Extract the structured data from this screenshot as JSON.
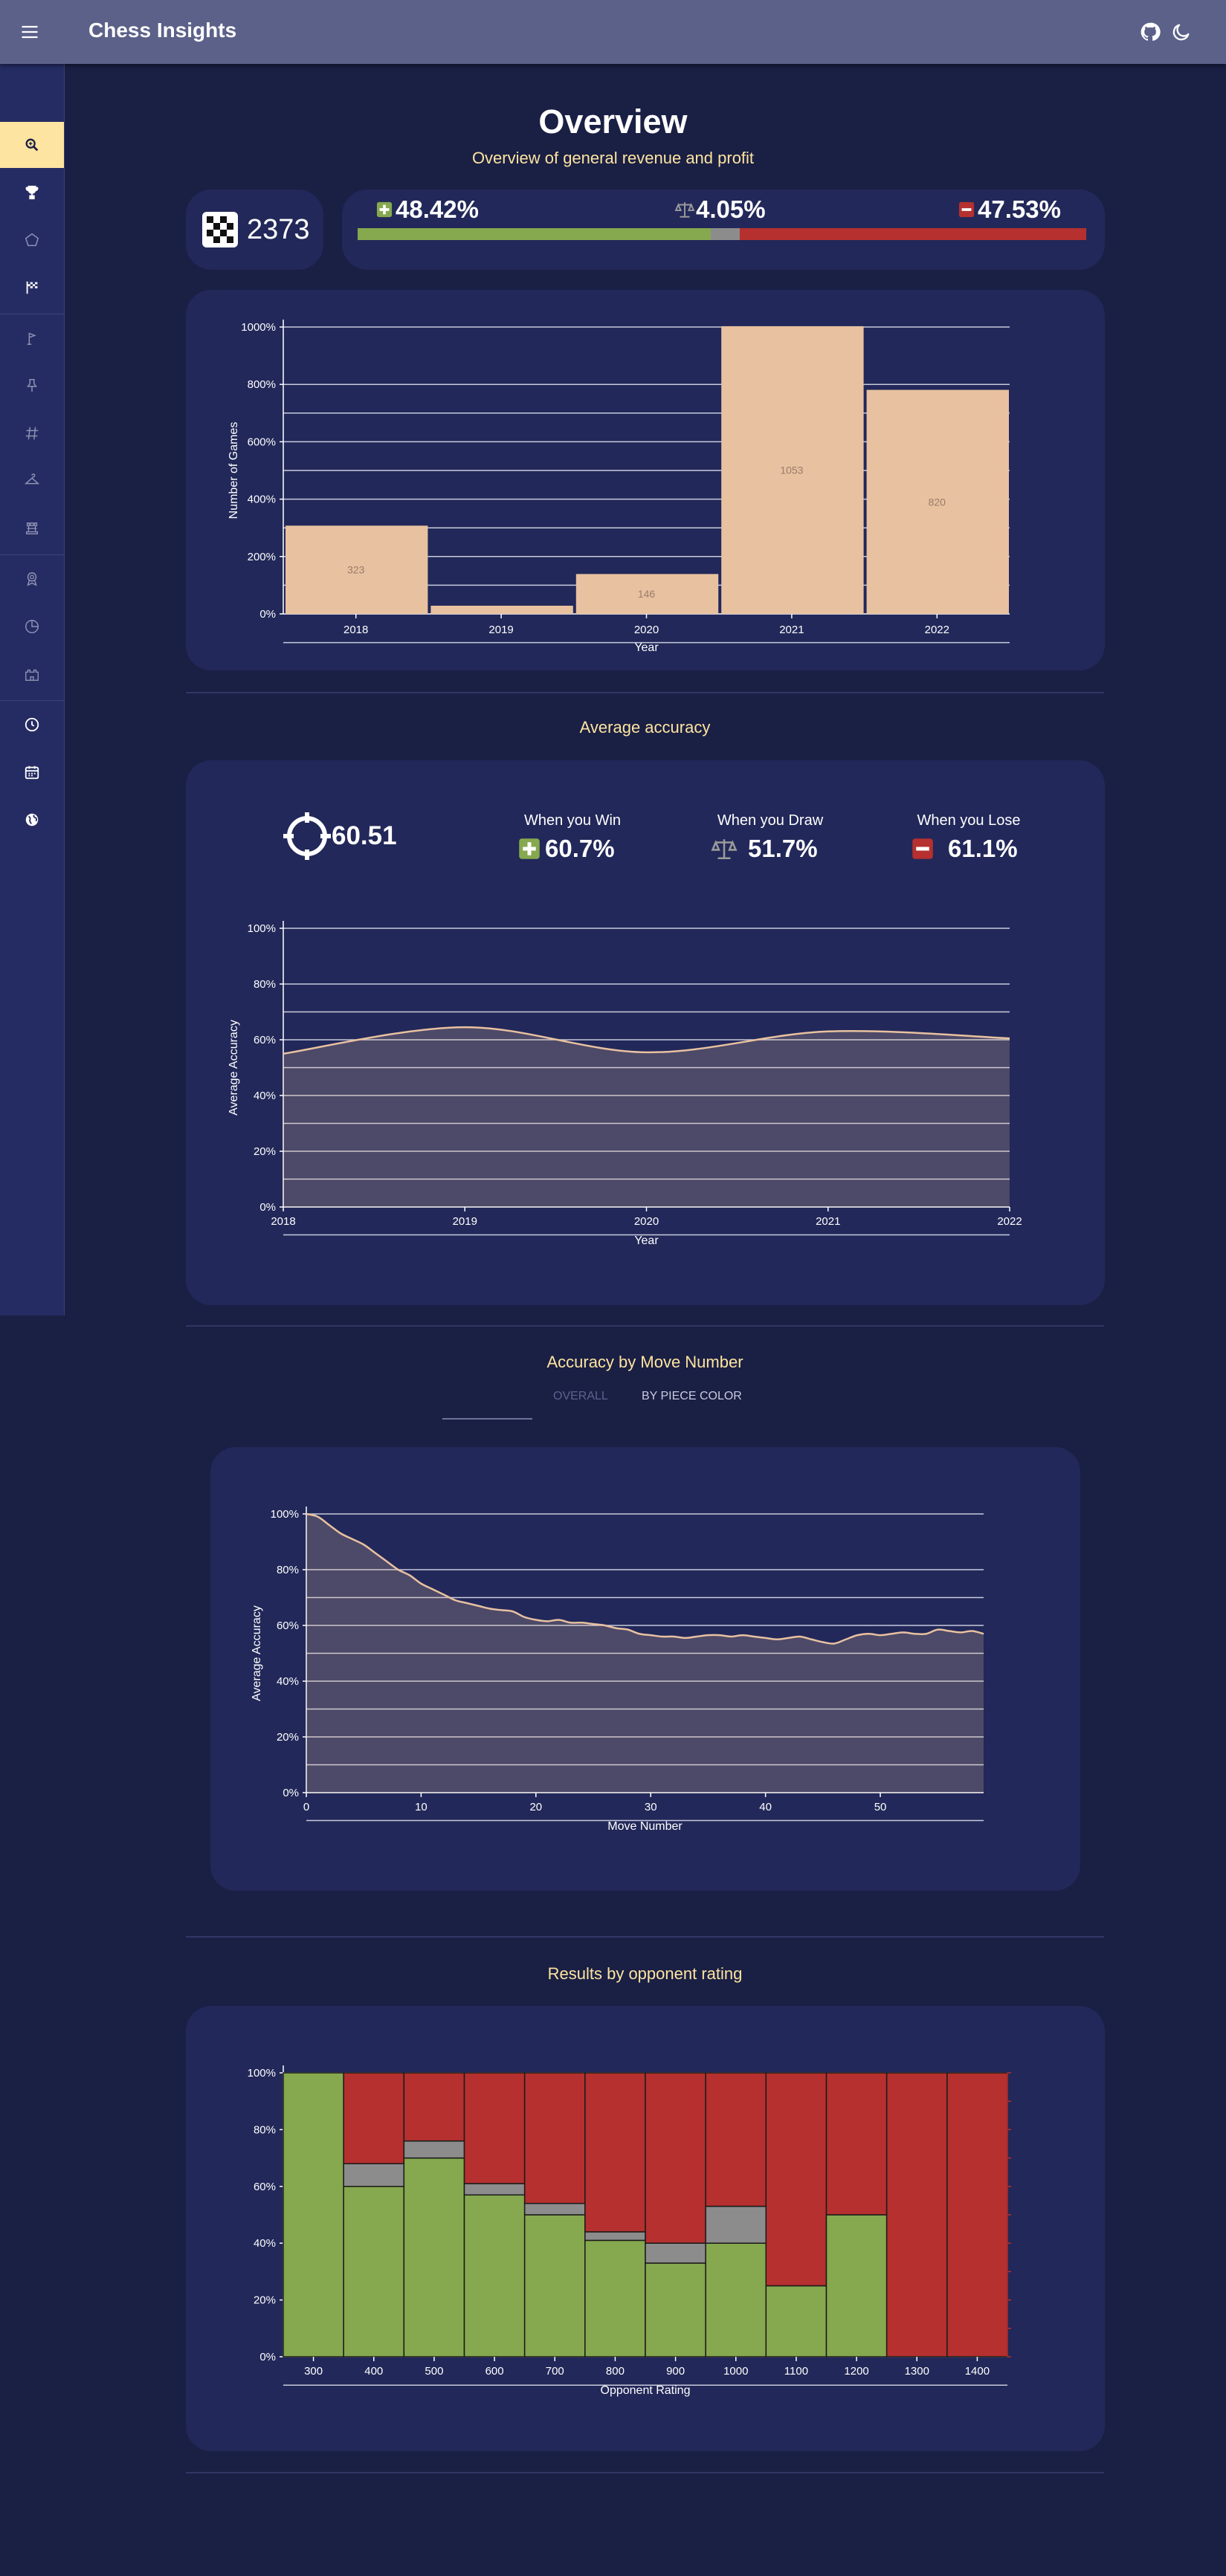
{
  "app": {
    "title": "Chess Insights"
  },
  "overview": {
    "title": "Overview",
    "subtitle": "Overview of general revenue and profit",
    "games_total": "2373",
    "win_pct": "48.42%",
    "draw_pct": "4.05%",
    "loss_pct": "47.53%",
    "win_fraction": 0.4842,
    "draw_fraction": 0.0405,
    "loss_fraction": 0.4753
  },
  "colors": {
    "win": "#86a84e",
    "draw": "#8c8c8c",
    "loss": "#b5302f",
    "bar": "#e8c1a0",
    "accent": "#fde4a0",
    "background": "#1a1f44",
    "card": "#222859"
  },
  "sidebar": {
    "items": [
      {
        "icon": "search-icon"
      },
      {
        "icon": "trophy-icon"
      },
      {
        "icon": "pentagon-icon"
      },
      {
        "icon": "checkered-flag-icon"
      },
      {
        "icon": "flag-icon"
      },
      {
        "icon": "pin-icon"
      },
      {
        "icon": "hashtag-icon"
      },
      {
        "icon": "hanger-icon"
      },
      {
        "icon": "chess-rook-icon"
      },
      {
        "icon": "award-icon"
      },
      {
        "icon": "pie-chart-icon"
      },
      {
        "icon": "castle-icon"
      },
      {
        "icon": "clock-icon"
      },
      {
        "icon": "calendar-icon"
      },
      {
        "icon": "globe-icon"
      }
    ]
  },
  "accuracy": {
    "section_title": "Average accuracy",
    "overall": "60.51",
    "win_label": "When you Win",
    "win_value": "60.7%",
    "draw_label": "When you Draw",
    "draw_value": "51.7%",
    "loss_label": "When you Lose",
    "loss_value": "61.1%"
  },
  "move_section": {
    "title": "Accuracy by Move Number",
    "tabs": [
      "OVERALL",
      "BY PIECE COLOR"
    ]
  },
  "rating_section": {
    "title": "Results by opponent rating"
  },
  "chart_data": [
    {
      "type": "bar",
      "xlabel": "Year",
      "ylabel": "Number of Games",
      "categories": [
        "2018",
        "2019",
        "2020",
        "2021",
        "2022"
      ],
      "values": [
        323,
        30,
        146,
        1053,
        820
      ],
      "data_labels": [
        "323",
        "",
        "146",
        "1053",
        "820"
      ],
      "y_ticks": [
        "0%",
        "200%",
        "400%",
        "600%",
        "800%",
        "1000%"
      ],
      "ylim": [
        0,
        1050
      ],
      "grid": true
    },
    {
      "type": "area",
      "xlabel": "Year",
      "ylabel": "Average Accuracy",
      "x": [
        2018,
        2019,
        2020,
        2021,
        2022
      ],
      "values": [
        55,
        64.5,
        55.5,
        63,
        60.5
      ],
      "x_ticks": [
        "2018",
        "2019",
        "2020",
        "2021",
        "2022"
      ],
      "y_ticks": [
        "0%",
        "20%",
        "40%",
        "60%",
        "80%",
        "100%"
      ],
      "ylim": [
        0,
        100
      ],
      "grid": true
    },
    {
      "type": "area",
      "xlabel": "Move Number",
      "ylabel": "Average Accuracy",
      "x": [
        0,
        1,
        2,
        3,
        4,
        5,
        6,
        7,
        8,
        9,
        10,
        11,
        12,
        13,
        14,
        15,
        16,
        17,
        18,
        19,
        20,
        21,
        22,
        23,
        24,
        25,
        26,
        27,
        28,
        29,
        30,
        31,
        32,
        33,
        34,
        35,
        36,
        37,
        38,
        39,
        40,
        41,
        42,
        43,
        44,
        45,
        46,
        47,
        48,
        49,
        50,
        51,
        52,
        53,
        54,
        55,
        56,
        57,
        58,
        59
      ],
      "values": [
        100,
        99,
        96,
        93,
        91,
        89,
        86,
        83,
        80,
        78,
        75,
        73,
        71,
        69,
        68,
        67,
        66,
        65.5,
        65,
        63,
        62,
        61.5,
        62,
        61,
        61,
        60.5,
        60,
        59,
        58.5,
        57,
        56.5,
        56,
        56,
        55.5,
        56,
        56.5,
        56.5,
        56,
        56.5,
        56,
        55.5,
        55,
        55.5,
        56,
        55,
        54,
        53.5,
        55,
        56.5,
        57,
        56.5,
        57,
        57.5,
        57,
        57,
        58.5,
        58,
        57.5,
        58,
        57
      ],
      "x_ticks": [
        "0",
        "10",
        "20",
        "30",
        "40",
        "50"
      ],
      "y_ticks": [
        "0%",
        "20%",
        "40%",
        "60%",
        "80%",
        "100%"
      ],
      "ylim": [
        0,
        100
      ],
      "grid": true
    },
    {
      "type": "bar",
      "stacked": true,
      "xlabel": "Opponent Rating",
      "categories": [
        "300",
        "400",
        "500",
        "600",
        "700",
        "800",
        "900",
        "1000",
        "1100",
        "1200",
        "1300",
        "1400"
      ],
      "series": [
        {
          "values": [
            100,
            60,
            70,
            57,
            50,
            41,
            33,
            40,
            25,
            50,
            0,
            0
          ]
        },
        {
          "values": [
            0,
            8,
            6,
            4,
            4,
            3,
            7,
            13,
            0,
            0,
            0,
            0
          ]
        },
        {
          "values": [
            0,
            32,
            24,
            39,
            46,
            56,
            60,
            47,
            75,
            50,
            100,
            100
          ]
        }
      ],
      "y_ticks": [
        "0%",
        "20%",
        "40%",
        "60%",
        "80%",
        "100%"
      ],
      "ylim": [
        0,
        100
      ],
      "grid": true
    }
  ]
}
